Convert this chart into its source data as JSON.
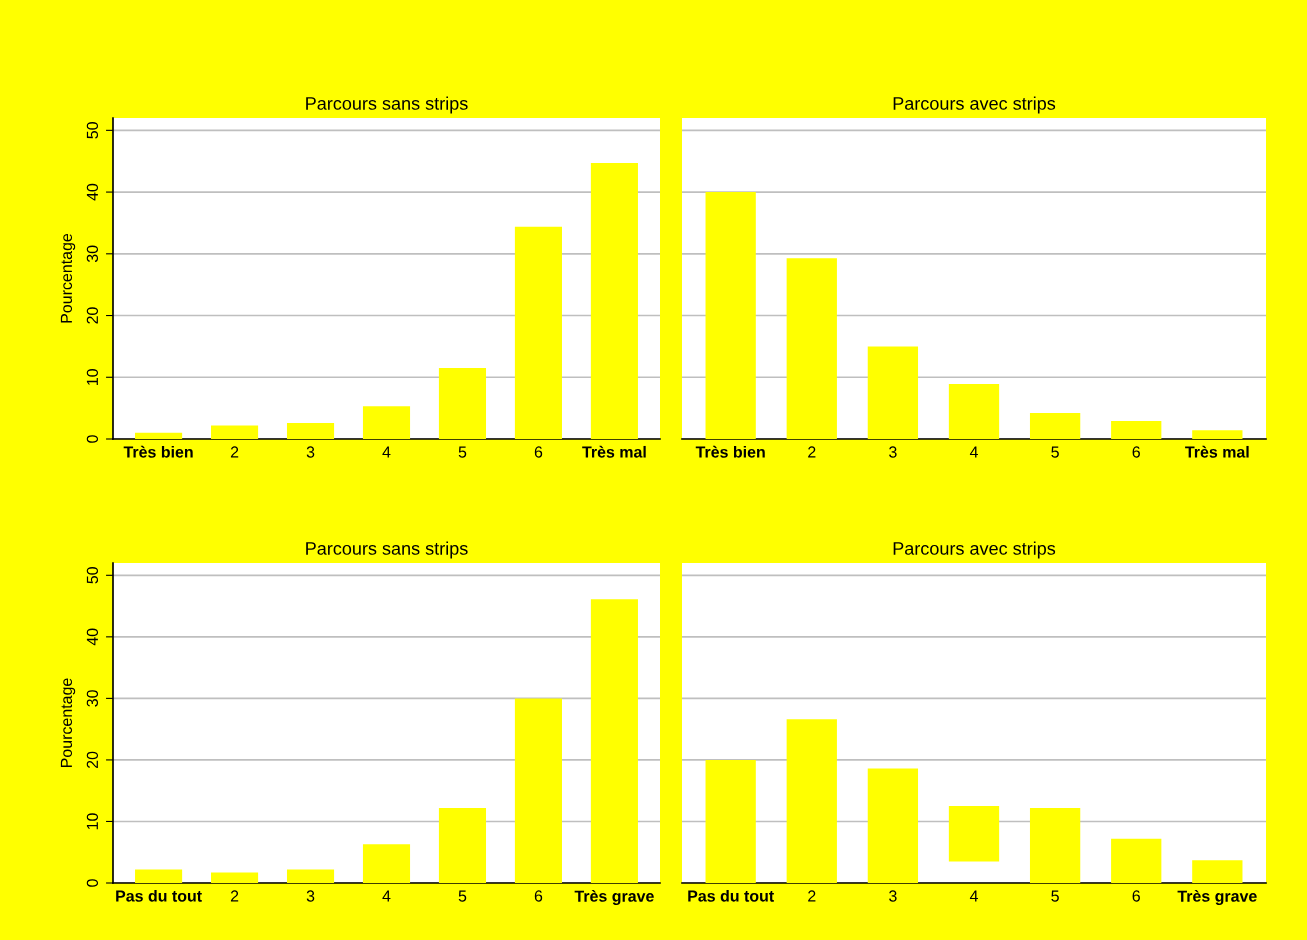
{
  "chart_data": [
    {
      "type": "bar",
      "title": "Parcours sans strips",
      "ylabel": "Pourcentage",
      "categories": [
        "Très bien",
        "2",
        "3",
        "4",
        "5",
        "6",
        "Très mal"
      ],
      "values": [
        1.0,
        2.2,
        2.6,
        5.3,
        11.5,
        34.4,
        44.7
      ],
      "color": "#ffff00",
      "ylim": [
        0,
        52
      ],
      "yticks": [
        0,
        10,
        20,
        30,
        40,
        50
      ],
      "grid": "y"
    },
    {
      "type": "bar",
      "title": "Parcours avec strips",
      "categories": [
        "Très bien",
        "2",
        "3",
        "4",
        "5",
        "6",
        "Très mal"
      ],
      "values": [
        40.0,
        29.3,
        15.0,
        8.9,
        4.2,
        2.9,
        1.4
      ],
      "color": "#ffff00",
      "ylim": [
        0,
        52
      ],
      "yticks": [
        0,
        10,
        20,
        30,
        40,
        50
      ],
      "grid": "y",
      "tick_labels": "x"
    },
    {
      "type": "bar",
      "title": "Parcours sans strips",
      "ylabel": "Pourcentage",
      "categories": [
        "Pas du tout",
        "2",
        "3",
        "4",
        "5",
        "6",
        "Très grave"
      ],
      "values": [
        2.2,
        1.7,
        2.2,
        6.3,
        12.2,
        30.0,
        46.1
      ],
      "color": "#ffff00",
      "ylim": [
        0,
        52
      ],
      "yticks": [
        0,
        10,
        20,
        30,
        40,
        50
      ],
      "grid": "y"
    },
    {
      "type": "bar",
      "title": "Parcours avec strips",
      "categories": [
        "Pas du tout",
        "2",
        "3",
        "4",
        "5",
        "6",
        "Très grave"
      ],
      "values": [
        20.0,
        26.6,
        18.6,
        9.0,
        12.2,
        7.2,
        3.7
      ],
      "base": [
        0,
        0,
        0,
        3.5,
        0,
        0,
        0
      ],
      "color": "#ffff00",
      "ylim": [
        0,
        52
      ],
      "yticks": [
        0,
        10,
        20,
        30,
        40,
        50
      ],
      "grid": "y",
      "tick_labels": "x"
    }
  ]
}
